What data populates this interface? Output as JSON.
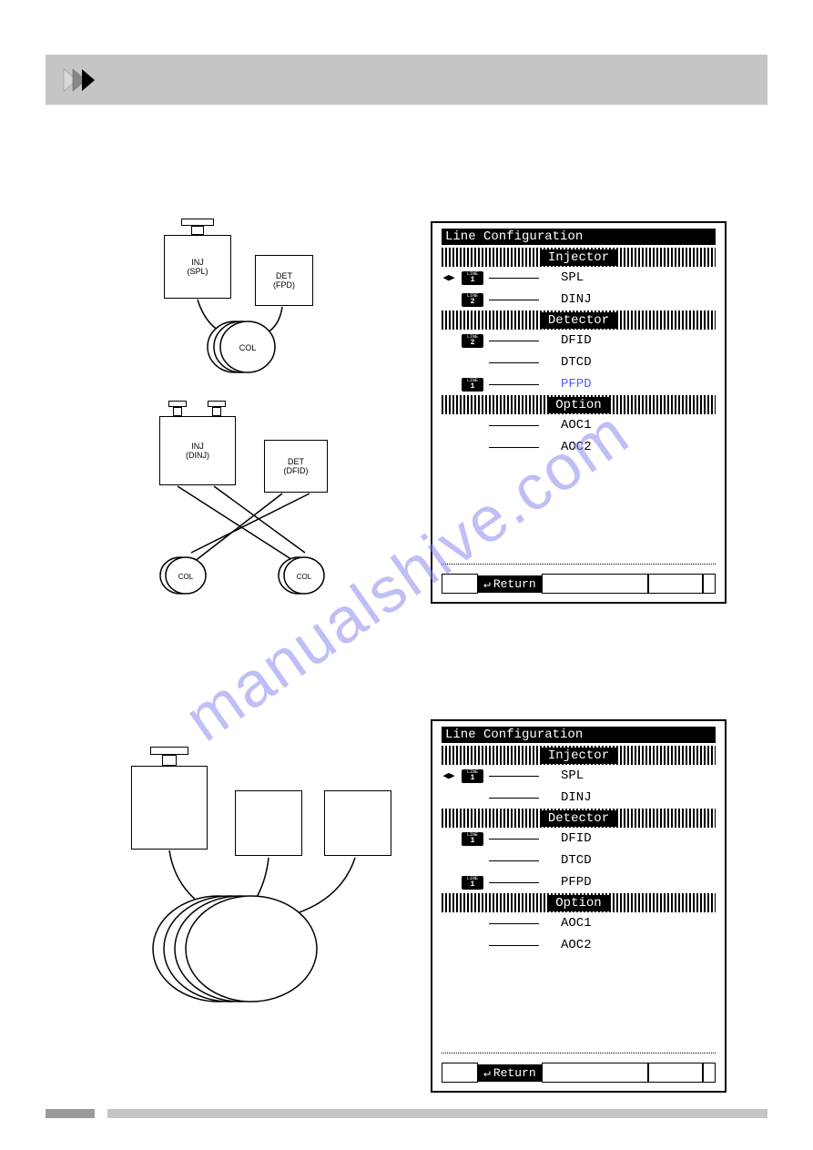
{
  "watermark": "manualshive.com",
  "panel1": {
    "title": "Line Configuration",
    "sections": [
      {
        "label": "Injector",
        "items": [
          {
            "arrow": true,
            "badge": "1",
            "label": "SPL",
            "blue": false
          },
          {
            "arrow": false,
            "badge": "2",
            "label": "DINJ",
            "blue": false
          }
        ]
      },
      {
        "label": "Detector",
        "items": [
          {
            "arrow": false,
            "badge": "2",
            "label": "DFID",
            "blue": false
          },
          {
            "arrow": false,
            "badge": "",
            "label": "DTCD",
            "blue": false
          },
          {
            "arrow": false,
            "badge": "1",
            "label": "PFPD",
            "blue": true
          }
        ]
      },
      {
        "label": "Option",
        "items": [
          {
            "arrow": false,
            "badge": "",
            "label": "AOC1",
            "blue": false
          },
          {
            "arrow": false,
            "badge": "",
            "label": "AOC2",
            "blue": false
          }
        ]
      }
    ],
    "return": "Return"
  },
  "panel2": {
    "title": "Line Configuration",
    "sections": [
      {
        "label": "Injector",
        "items": [
          {
            "arrow": true,
            "badge": "1",
            "label": "SPL",
            "blue": false
          },
          {
            "arrow": false,
            "badge": "",
            "label": "DINJ",
            "blue": false
          }
        ]
      },
      {
        "label": "Detector",
        "items": [
          {
            "arrow": false,
            "badge": "1",
            "label": "DFID",
            "blue": false
          },
          {
            "arrow": false,
            "badge": "",
            "label": "DTCD",
            "blue": false
          },
          {
            "arrow": false,
            "badge": "1",
            "label": "PFPD",
            "blue": false
          }
        ]
      },
      {
        "label": "Option",
        "items": [
          {
            "arrow": false,
            "badge": "",
            "label": "AOC1",
            "blue": false
          },
          {
            "arrow": false,
            "badge": "",
            "label": "AOC2",
            "blue": false
          }
        ]
      }
    ],
    "return": "Return"
  },
  "diag1": {
    "inj_spl": {
      "l1": "INJ",
      "l2": "(SPL)"
    },
    "det_fpd": {
      "l1": "DET",
      "l2": "(FPD)"
    },
    "col": "COL",
    "inj_dinj": {
      "l1": "INJ",
      "l2": "(DINJ)"
    },
    "det_dfid": {
      "l1": "DET",
      "l2": "(DFID)"
    },
    "col_l": "COL",
    "col_r": "COL"
  },
  "colors": {
    "header_bg": "#c5c5c5",
    "watermark": "#8c8cf0",
    "blue_text": "#5a5af0"
  }
}
